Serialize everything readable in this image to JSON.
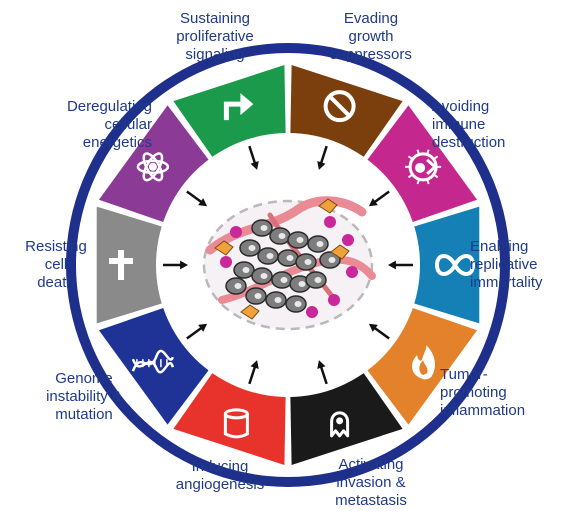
{
  "colors": {
    "ring": "#1e2f8c",
    "label": "#1f3a8a",
    "arrow": "#111111",
    "cell_gray": "#7d7d7d",
    "vessel": "#e98a94",
    "purple": "#c9279a",
    "orange": "#f0a23a"
  },
  "hallmarks": [
    {
      "id": "sustaining-proliferative-signaling",
      "color": "#1a9a4a",
      "icon": "bent-arrow-icon",
      "label": [
        "Sustaining",
        "proliferative",
        "signaling"
      ]
    },
    {
      "id": "evading-growth-suppressors",
      "color": "#7b3f0e",
      "icon": "prohibition-icon",
      "label": [
        "Evading",
        "growth",
        "suppressors"
      ]
    },
    {
      "id": "avoiding-immune-destruction",
      "color": "#c4288f",
      "icon": "immune-cell-icon",
      "label": [
        "Avoiding",
        "immune",
        "destruction"
      ]
    },
    {
      "id": "enabling-replicative-immortality",
      "color": "#1580b5",
      "icon": "infinity-icon",
      "label": [
        "Enabling",
        "replicative",
        "immortality"
      ]
    },
    {
      "id": "tumor-promoting-inflammation",
      "color": "#e3822a",
      "icon": "flame-icon",
      "label": [
        "Tumor-",
        "promoting",
        "inflammation"
      ]
    },
    {
      "id": "activating-invasion-metastasis",
      "color": "#1a1a1a",
      "icon": "migrating-cell-icon",
      "label": [
        "Activating",
        "invasion &",
        "metastasis"
      ]
    },
    {
      "id": "inducing-angiogenesis",
      "color": "#e8332c",
      "icon": "blood-vessel-icon",
      "label": [
        "Inducing",
        "angiogenesis"
      ]
    },
    {
      "id": "genome-instability-mutation",
      "color": "#1f3396",
      "icon": "dna-icon",
      "label": [
        "Genome",
        "instability &",
        "mutation"
      ]
    },
    {
      "id": "resisting-cell-death",
      "color": "#8a8a8a",
      "icon": "cross-icon",
      "label": [
        "Resisting",
        "cell",
        "death"
      ]
    },
    {
      "id": "deregulating-cellular-energetics",
      "color": "#8b3a95",
      "icon": "atom-icon",
      "label": [
        "Deregulating",
        "cellular",
        "energetics"
      ]
    }
  ]
}
